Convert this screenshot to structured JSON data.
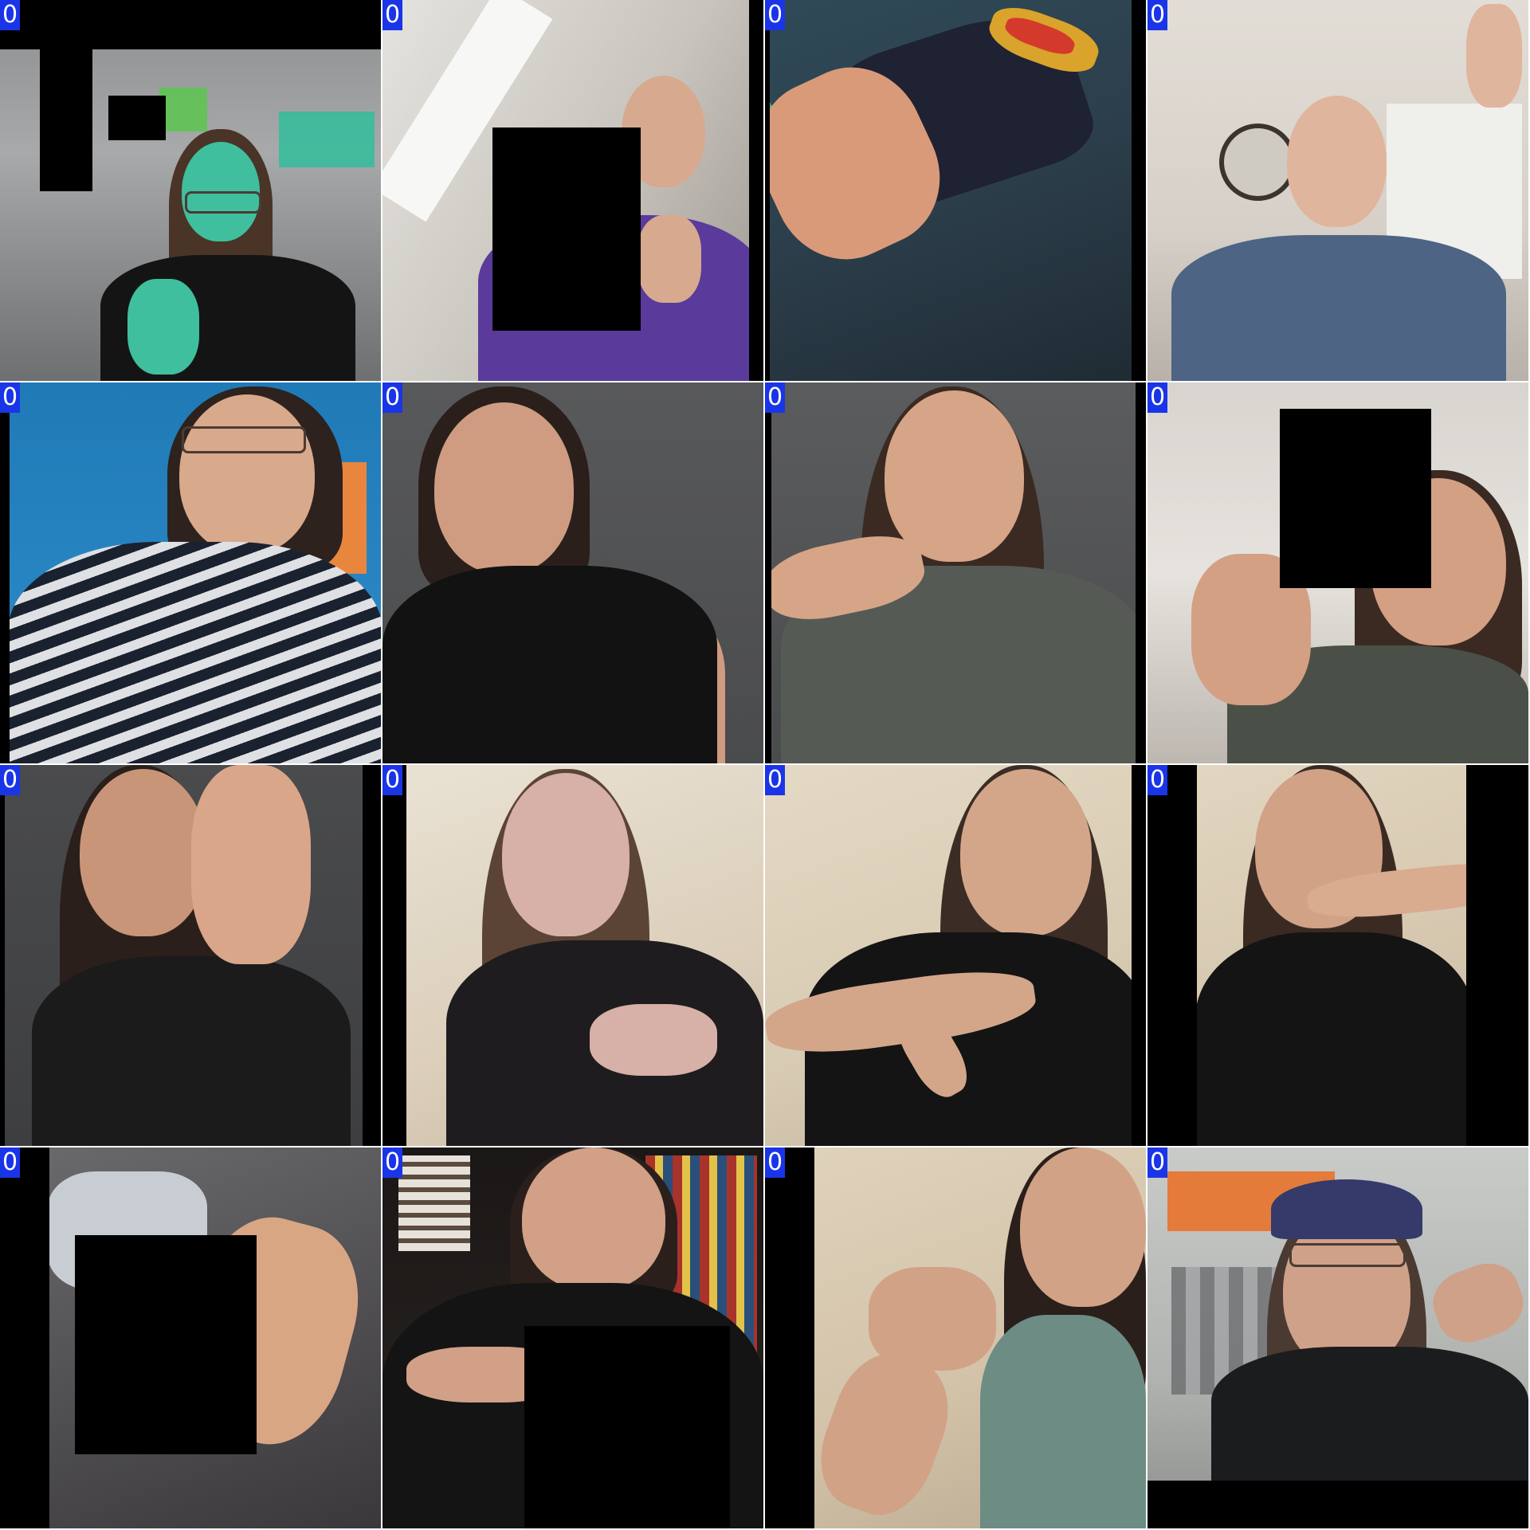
{
  "tiles": [
    {
      "label": "0"
    },
    {
      "label": "0"
    },
    {
      "label": "0"
    },
    {
      "label": "0"
    },
    {
      "label": "0"
    },
    {
      "label": "0"
    },
    {
      "label": "0"
    },
    {
      "label": "0"
    },
    {
      "label": "0"
    },
    {
      "label": "0"
    },
    {
      "label": "0"
    },
    {
      "label": "0"
    },
    {
      "label": "0"
    },
    {
      "label": "0"
    },
    {
      "label": "0"
    },
    {
      "label": "0"
    }
  ],
  "colors": {
    "label_bg": "#1a35e8",
    "occluder": "#000000"
  }
}
